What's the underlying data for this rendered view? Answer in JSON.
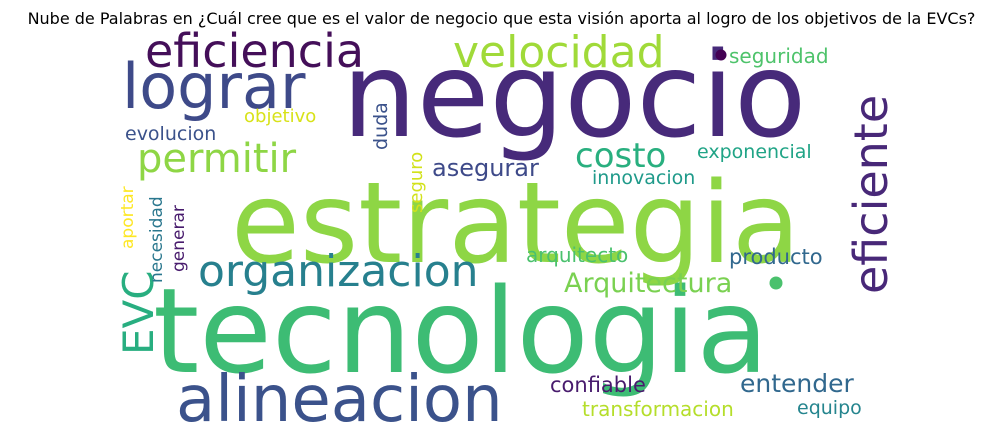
{
  "chart_data": {
    "type": "wordcloud",
    "title": "Nube de Palabras en ¿Cuál cree que es el valor de negocio que esta visión aporta al logro de los objetivos de la EVCs?",
    "colormap": "viridis",
    "words": [
      {
        "text": "negocio",
        "weight": 100,
        "orientation": "horizontal",
        "color": "#472a7a"
      },
      {
        "text": "tecnologia",
        "weight": 98,
        "orientation": "horizontal",
        "color": "#3dbc74"
      },
      {
        "text": "estrategia",
        "weight": 95,
        "orientation": "horizontal",
        "color": "#8ed645"
      },
      {
        "text": "alineacion",
        "weight": 55,
        "orientation": "horizontal",
        "color": "#3b528b"
      },
      {
        "text": "lograr",
        "weight": 52,
        "orientation": "horizontal",
        "color": "#3e4a89"
      },
      {
        "text": "eficiente",
        "weight": 48,
        "orientation": "vertical",
        "color": "#482878"
      },
      {
        "text": "organizacion",
        "weight": 44,
        "orientation": "horizontal",
        "color": "#27808e"
      },
      {
        "text": "eficiencia",
        "weight": 42,
        "orientation": "horizontal",
        "color": "#440f59"
      },
      {
        "text": "velocidad",
        "weight": 40,
        "orientation": "horizontal",
        "color": "#a0da39"
      },
      {
        "text": "EVC",
        "weight": 38,
        "orientation": "vertical",
        "color": "#28ae80"
      },
      {
        "text": "permitir",
        "weight": 36,
        "orientation": "horizontal",
        "color": "#8ed645"
      },
      {
        "text": "costo",
        "weight": 30,
        "orientation": "horizontal",
        "color": "#29af7f"
      },
      {
        "text": "Arquitectura",
        "weight": 25,
        "orientation": "horizontal",
        "color": "#7ad151"
      },
      {
        "text": "entender",
        "weight": 22,
        "orientation": "horizontal",
        "color": "#31688e"
      },
      {
        "text": "asegurar",
        "weight": 21,
        "orientation": "horizontal",
        "color": "#3e4a89"
      },
      {
        "text": "confiable",
        "weight": 20,
        "orientation": "horizontal",
        "color": "#481b6d"
      },
      {
        "text": "transformacion",
        "weight": 20,
        "orientation": "horizontal",
        "color": "#b5de2b"
      },
      {
        "text": "arquitecto",
        "weight": 19,
        "orientation": "horizontal",
        "color": "#4ac16d"
      },
      {
        "text": "producto",
        "weight": 19,
        "orientation": "horizontal",
        "color": "#31688e"
      },
      {
        "text": "seguridad",
        "weight": 18,
        "orientation": "horizontal",
        "color": "#4ec36b"
      },
      {
        "text": "exponencial",
        "weight": 18,
        "orientation": "horizontal",
        "color": "#20a486"
      },
      {
        "text": "innovacion",
        "weight": 17,
        "orientation": "horizontal",
        "color": "#1f9a8a"
      },
      {
        "text": "evolucion",
        "weight": 17,
        "orientation": "horizontal",
        "color": "#3b528b"
      },
      {
        "text": "equipo",
        "weight": 17,
        "orientation": "horizontal",
        "color": "#25858e"
      },
      {
        "text": "objetivo",
        "weight": 16,
        "orientation": "horizontal",
        "color": "#d8e219"
      },
      {
        "text": "duda",
        "weight": 16,
        "orientation": "vertical",
        "color": "#3b528b"
      },
      {
        "text": "seguro",
        "weight": 15,
        "orientation": "vertical",
        "color": "#d2e21b"
      },
      {
        "text": "necesidad",
        "weight": 15,
        "orientation": "vertical",
        "color": "#2a778e"
      },
      {
        "text": "generar",
        "weight": 15,
        "orientation": "vertical",
        "color": "#481b6d"
      },
      {
        "text": "aportar",
        "weight": 15,
        "orientation": "vertical",
        "color": "#fde725"
      }
    ],
    "dots": [
      {
        "color": "#440154"
      },
      {
        "color": "#4ac16d"
      }
    ]
  }
}
